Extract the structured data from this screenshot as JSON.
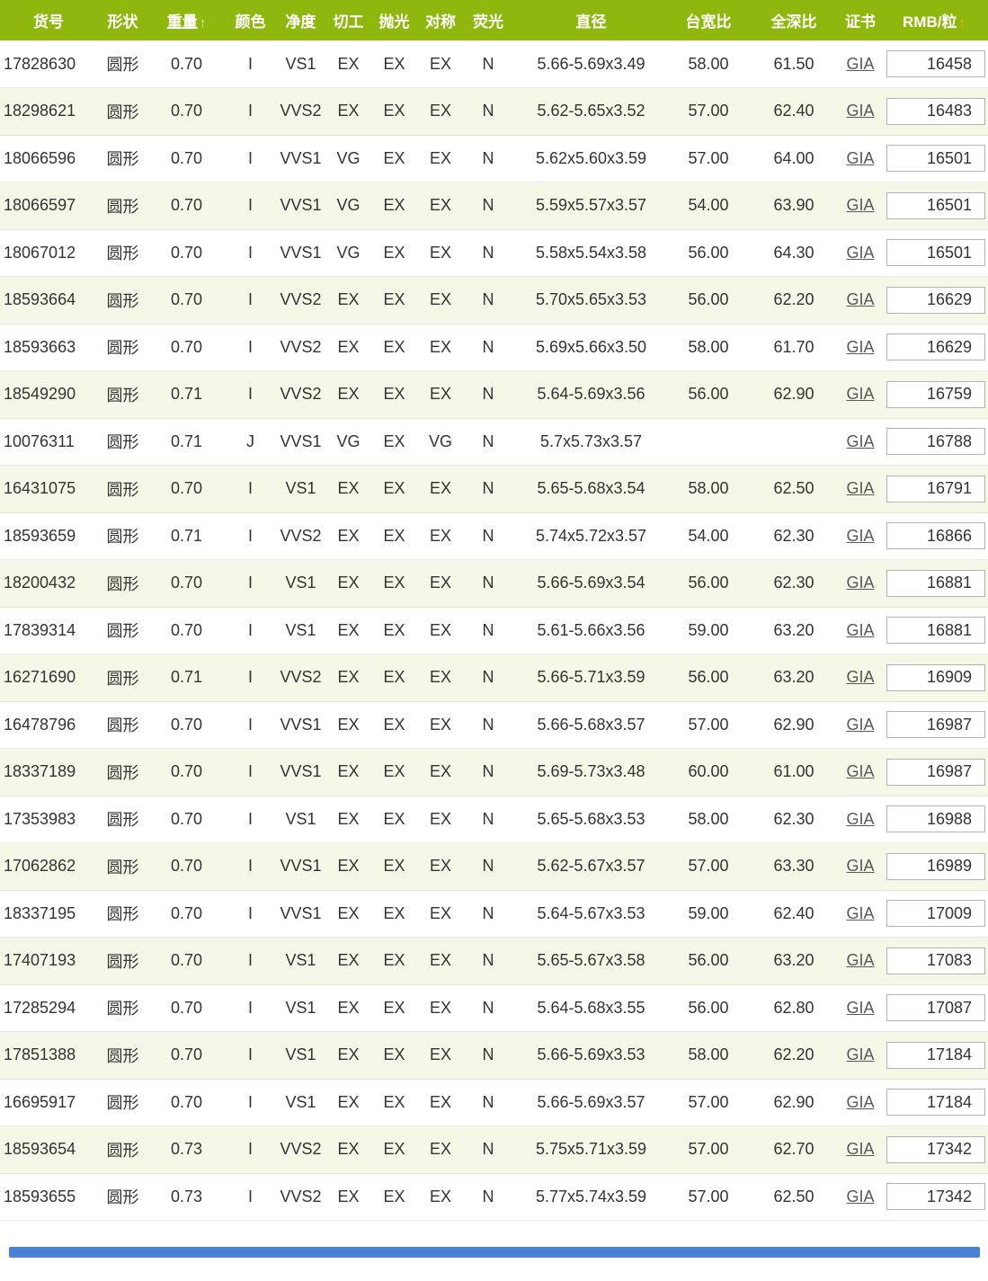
{
  "table": {
    "columns": [
      {
        "id": "item_no",
        "label": "货号",
        "sortable": false
      },
      {
        "id": "shape",
        "label": "形状",
        "sortable": false
      },
      {
        "id": "weight",
        "label": "重量",
        "sortable": true,
        "underlined": true,
        "sort_arrow": "↑",
        "arrow_active": false
      },
      {
        "id": "color",
        "label": "颜色",
        "sortable": false
      },
      {
        "id": "clarity",
        "label": "净度",
        "sortable": false
      },
      {
        "id": "cut",
        "label": "切工",
        "sortable": false
      },
      {
        "id": "polish",
        "label": "抛光",
        "sortable": false
      },
      {
        "id": "symmetry",
        "label": "对称",
        "sortable": false
      },
      {
        "id": "fluorescence",
        "label": "荧光",
        "sortable": false
      },
      {
        "id": "diameter",
        "label": "直径",
        "sortable": false
      },
      {
        "id": "table_ratio",
        "label": "台宽比",
        "sortable": false
      },
      {
        "id": "depth_ratio",
        "label": "全深比",
        "sortable": false
      },
      {
        "id": "cert",
        "label": "证书",
        "sortable": false
      },
      {
        "id": "price",
        "label": "RMB/粒",
        "sortable": true,
        "sort_arrow": "↑",
        "arrow_active": true
      }
    ],
    "rows": [
      {
        "item_no": "17828630",
        "shape": "圆形",
        "weight": "0.70",
        "color": "I",
        "clarity": "VS1",
        "cut": "EX",
        "polish": "EX",
        "symmetry": "EX",
        "fluorescence": "N",
        "diameter": "5.66-5.69x3.49",
        "table_ratio": "58.00",
        "depth_ratio": "61.50",
        "cert": "GIA",
        "price": "16458"
      },
      {
        "item_no": "18298621",
        "shape": "圆形",
        "weight": "0.70",
        "color": "I",
        "clarity": "VVS2",
        "cut": "EX",
        "polish": "EX",
        "symmetry": "EX",
        "fluorescence": "N",
        "diameter": "5.62-5.65x3.52",
        "table_ratio": "57.00",
        "depth_ratio": "62.40",
        "cert": "GIA",
        "price": "16483"
      },
      {
        "item_no": "18066596",
        "shape": "圆形",
        "weight": "0.70",
        "color": "I",
        "clarity": "VVS1",
        "cut": "VG",
        "polish": "EX",
        "symmetry": "EX",
        "fluorescence": "N",
        "diameter": "5.62x5.60x3.59",
        "table_ratio": "57.00",
        "depth_ratio": "64.00",
        "cert": "GIA",
        "price": "16501"
      },
      {
        "item_no": "18066597",
        "shape": "圆形",
        "weight": "0.70",
        "color": "I",
        "clarity": "VVS1",
        "cut": "VG",
        "polish": "EX",
        "symmetry": "EX",
        "fluorescence": "N",
        "diameter": "5.59x5.57x3.57",
        "table_ratio": "54.00",
        "depth_ratio": "63.90",
        "cert": "GIA",
        "price": "16501"
      },
      {
        "item_no": "18067012",
        "shape": "圆形",
        "weight": "0.70",
        "color": "I",
        "clarity": "VVS1",
        "cut": "VG",
        "polish": "EX",
        "symmetry": "EX",
        "fluorescence": "N",
        "diameter": "5.58x5.54x3.58",
        "table_ratio": "56.00",
        "depth_ratio": "64.30",
        "cert": "GIA",
        "price": "16501"
      },
      {
        "item_no": "18593664",
        "shape": "圆形",
        "weight": "0.70",
        "color": "I",
        "clarity": "VVS2",
        "cut": "EX",
        "polish": "EX",
        "symmetry": "EX",
        "fluorescence": "N",
        "diameter": "5.70x5.65x3.53",
        "table_ratio": "56.00",
        "depth_ratio": "62.20",
        "cert": "GIA",
        "price": "16629"
      },
      {
        "item_no": "18593663",
        "shape": "圆形",
        "weight": "0.70",
        "color": "I",
        "clarity": "VVS2",
        "cut": "EX",
        "polish": "EX",
        "symmetry": "EX",
        "fluorescence": "N",
        "diameter": "5.69x5.66x3.50",
        "table_ratio": "58.00",
        "depth_ratio": "61.70",
        "cert": "GIA",
        "price": "16629"
      },
      {
        "item_no": "18549290",
        "shape": "圆形",
        "weight": "0.71",
        "color": "I",
        "clarity": "VVS2",
        "cut": "EX",
        "polish": "EX",
        "symmetry": "EX",
        "fluorescence": "N",
        "diameter": "5.64-5.69x3.56",
        "table_ratio": "56.00",
        "depth_ratio": "62.90",
        "cert": "GIA",
        "price": "16759"
      },
      {
        "item_no": "10076311",
        "shape": "圆形",
        "weight": "0.71",
        "color": "J",
        "clarity": "VVS1",
        "cut": "VG",
        "polish": "EX",
        "symmetry": "VG",
        "fluorescence": "N",
        "diameter": "5.7x5.73x3.57",
        "table_ratio": "",
        "depth_ratio": "",
        "cert": "GIA",
        "price": "16788"
      },
      {
        "item_no": "16431075",
        "shape": "圆形",
        "weight": "0.70",
        "color": "I",
        "clarity": "VS1",
        "cut": "EX",
        "polish": "EX",
        "symmetry": "EX",
        "fluorescence": "N",
        "diameter": "5.65-5.68x3.54",
        "table_ratio": "58.00",
        "depth_ratio": "62.50",
        "cert": "GIA",
        "price": "16791"
      },
      {
        "item_no": "18593659",
        "shape": "圆形",
        "weight": "0.71",
        "color": "I",
        "clarity": "VVS2",
        "cut": "EX",
        "polish": "EX",
        "symmetry": "EX",
        "fluorescence": "N",
        "diameter": "5.74x5.72x3.57",
        "table_ratio": "54.00",
        "depth_ratio": "62.30",
        "cert": "GIA",
        "price": "16866"
      },
      {
        "item_no": "18200432",
        "shape": "圆形",
        "weight": "0.70",
        "color": "I",
        "clarity": "VS1",
        "cut": "EX",
        "polish": "EX",
        "symmetry": "EX",
        "fluorescence": "N",
        "diameter": "5.66-5.69x3.54",
        "table_ratio": "56.00",
        "depth_ratio": "62.30",
        "cert": "GIA",
        "price": "16881"
      },
      {
        "item_no": "17839314",
        "shape": "圆形",
        "weight": "0.70",
        "color": "I",
        "clarity": "VS1",
        "cut": "EX",
        "polish": "EX",
        "symmetry": "EX",
        "fluorescence": "N",
        "diameter": "5.61-5.66x3.56",
        "table_ratio": "59.00",
        "depth_ratio": "63.20",
        "cert": "GIA",
        "price": "16881"
      },
      {
        "item_no": "16271690",
        "shape": "圆形",
        "weight": "0.71",
        "color": "I",
        "clarity": "VVS2",
        "cut": "EX",
        "polish": "EX",
        "symmetry": "EX",
        "fluorescence": "N",
        "diameter": "5.66-5.71x3.59",
        "table_ratio": "56.00",
        "depth_ratio": "63.20",
        "cert": "GIA",
        "price": "16909"
      },
      {
        "item_no": "16478796",
        "shape": "圆形",
        "weight": "0.70",
        "color": "I",
        "clarity": "VVS1",
        "cut": "EX",
        "polish": "EX",
        "symmetry": "EX",
        "fluorescence": "N",
        "diameter": "5.66-5.68x3.57",
        "table_ratio": "57.00",
        "depth_ratio": "62.90",
        "cert": "GIA",
        "price": "16987"
      },
      {
        "item_no": "18337189",
        "shape": "圆形",
        "weight": "0.70",
        "color": "I",
        "clarity": "VVS1",
        "cut": "EX",
        "polish": "EX",
        "symmetry": "EX",
        "fluorescence": "N",
        "diameter": "5.69-5.73x3.48",
        "table_ratio": "60.00",
        "depth_ratio": "61.00",
        "cert": "GIA",
        "price": "16987"
      },
      {
        "item_no": "17353983",
        "shape": "圆形",
        "weight": "0.70",
        "color": "I",
        "clarity": "VS1",
        "cut": "EX",
        "polish": "EX",
        "symmetry": "EX",
        "fluorescence": "N",
        "diameter": "5.65-5.68x3.53",
        "table_ratio": "58.00",
        "depth_ratio": "62.30",
        "cert": "GIA",
        "price": "16988"
      },
      {
        "item_no": "17062862",
        "shape": "圆形",
        "weight": "0.70",
        "color": "I",
        "clarity": "VVS1",
        "cut": "EX",
        "polish": "EX",
        "symmetry": "EX",
        "fluorescence": "N",
        "diameter": "5.62-5.67x3.57",
        "table_ratio": "57.00",
        "depth_ratio": "63.30",
        "cert": "GIA",
        "price": "16989"
      },
      {
        "item_no": "18337195",
        "shape": "圆形",
        "weight": "0.70",
        "color": "I",
        "clarity": "VVS1",
        "cut": "EX",
        "polish": "EX",
        "symmetry": "EX",
        "fluorescence": "N",
        "diameter": "5.64-5.67x3.53",
        "table_ratio": "59.00",
        "depth_ratio": "62.40",
        "cert": "GIA",
        "price": "17009"
      },
      {
        "item_no": "17407193",
        "shape": "圆形",
        "weight": "0.70",
        "color": "I",
        "clarity": "VS1",
        "cut": "EX",
        "polish": "EX",
        "symmetry": "EX",
        "fluorescence": "N",
        "diameter": "5.65-5.67x3.58",
        "table_ratio": "56.00",
        "depth_ratio": "63.20",
        "cert": "GIA",
        "price": "17083"
      },
      {
        "item_no": "17285294",
        "shape": "圆形",
        "weight": "0.70",
        "color": "I",
        "clarity": "VS1",
        "cut": "EX",
        "polish": "EX",
        "symmetry": "EX",
        "fluorescence": "N",
        "diameter": "5.64-5.68x3.55",
        "table_ratio": "56.00",
        "depth_ratio": "62.80",
        "cert": "GIA",
        "price": "17087"
      },
      {
        "item_no": "17851388",
        "shape": "圆形",
        "weight": "0.70",
        "color": "I",
        "clarity": "VS1",
        "cut": "EX",
        "polish": "EX",
        "symmetry": "EX",
        "fluorescence": "N",
        "diameter": "5.66-5.69x3.53",
        "table_ratio": "58.00",
        "depth_ratio": "62.20",
        "cert": "GIA",
        "price": "17184"
      },
      {
        "item_no": "16695917",
        "shape": "圆形",
        "weight": "0.70",
        "color": "I",
        "clarity": "VS1",
        "cut": "EX",
        "polish": "EX",
        "symmetry": "EX",
        "fluorescence": "N",
        "diameter": "5.66-5.69x3.57",
        "table_ratio": "57.00",
        "depth_ratio": "62.90",
        "cert": "GIA",
        "price": "17184"
      },
      {
        "item_no": "18593654",
        "shape": "圆形",
        "weight": "0.73",
        "color": "I",
        "clarity": "VVS2",
        "cut": "EX",
        "polish": "EX",
        "symmetry": "EX",
        "fluorescence": "N",
        "diameter": "5.75x5.71x3.59",
        "table_ratio": "57.00",
        "depth_ratio": "62.70",
        "cert": "GIA",
        "price": "17342"
      },
      {
        "item_no": "18593655",
        "shape": "圆形",
        "weight": "0.73",
        "color": "I",
        "clarity": "VVS2",
        "cut": "EX",
        "polish": "EX",
        "symmetry": "EX",
        "fluorescence": "N",
        "diameter": "5.77x5.74x3.59",
        "table_ratio": "57.00",
        "depth_ratio": "62.50",
        "cert": "GIA",
        "price": "17342"
      }
    ]
  },
  "colors": {
    "header_bg": "#8fb70d",
    "alt_row_bg": "#f5f8e6",
    "active_sort_arrow": "#e0b315",
    "inactive_sort_arrow": "#dce4bb",
    "link_color": "#595959",
    "scrollbar_blue": "#4a80d8"
  }
}
